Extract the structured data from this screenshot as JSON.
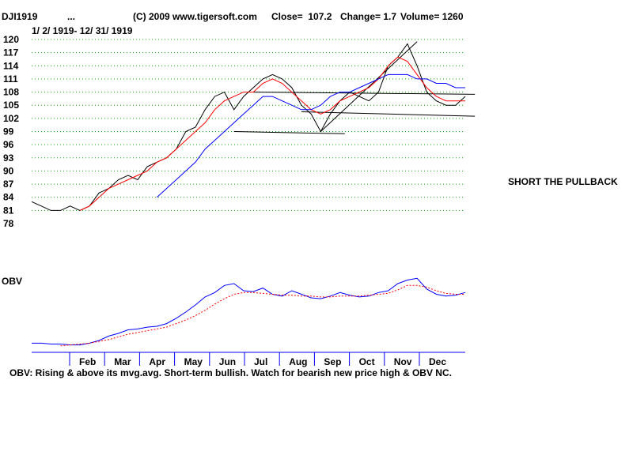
{
  "header": {
    "symbol": "DJI1919",
    "dots": "...",
    "copyright": "(C) 2009 www.tigersoft.com",
    "close": "Close=  107.2",
    "change": "Change= 1.7",
    "volume": "Volume= 1260"
  },
  "date_range": "1/ 2/ 1919- 12/ 31/ 1919",
  "annotation": "SHORT THE PULLBACK",
  "obv_label": "OBV",
  "obv_comment": "OBV: Rising & above its mvg.avg. Short-term bullish. Watch for bearish new price high & OBV NC.",
  "colors": {
    "price": "#000000",
    "ma_short": "#ff0000",
    "ma_long": "#0000ff",
    "obv": "#0000ff",
    "obv_ma": "#ff0000",
    "grid": "#00aa00"
  },
  "chart_data": [
    {
      "type": "line",
      "ylim": [
        78,
        121
      ],
      "y_ticks": [
        "120",
        "117",
        "114",
        "111",
        "108",
        "105",
        "102",
        "99",
        "96",
        "93",
        "90",
        "87",
        "84",
        "81",
        "78"
      ],
      "x": [
        0,
        8,
        16,
        24,
        32,
        40,
        48,
        56,
        64,
        72,
        80,
        88,
        96,
        104,
        112,
        120,
        128,
        136,
        144,
        152,
        160,
        168,
        176,
        184,
        192,
        200,
        208,
        216,
        224,
        232,
        240,
        248,
        256,
        264,
        272,
        280,
        288,
        296,
        304,
        312,
        320,
        328,
        336,
        344,
        352,
        360
      ],
      "series": [
        {
          "values": [
            83,
            82,
            81,
            81,
            82,
            81,
            82,
            85,
            86,
            88,
            89,
            88,
            91,
            92,
            93,
            95,
            99,
            100,
            104,
            107,
            108,
            104,
            107,
            109,
            111,
            112,
            111,
            109,
            105,
            103,
            99,
            103,
            106,
            108,
            107,
            106,
            108,
            114,
            116,
            119,
            114,
            108,
            106,
            105,
            105,
            107
          ]
        },
        {
          "values": [
            null,
            null,
            null,
            null,
            null,
            81,
            82,
            84,
            86,
            87,
            88,
            89,
            90,
            92,
            93,
            95,
            97,
            99,
            101,
            104,
            106,
            107,
            108,
            108,
            110,
            111,
            110,
            108,
            106,
            104,
            103,
            104,
            106,
            107,
            108,
            109,
            111,
            114,
            116,
            115,
            112,
            109,
            107,
            106,
            106,
            106
          ]
        },
        {
          "values": [
            null,
            null,
            null,
            null,
            null,
            null,
            null,
            null,
            null,
            null,
            null,
            null,
            null,
            84,
            86,
            88,
            90,
            92,
            95,
            97,
            99,
            101,
            103,
            105,
            107,
            107,
            106,
            105,
            104,
            104,
            105,
            107,
            108,
            108,
            109,
            110,
            111,
            112,
            112,
            112,
            111,
            111,
            110,
            110,
            109,
            109
          ]
        }
      ]
    },
    {
      "type": "line",
      "ylim": [
        0,
        100
      ],
      "x": [
        0,
        8,
        16,
        24,
        32,
        40,
        48,
        56,
        64,
        72,
        80,
        88,
        96,
        104,
        112,
        120,
        128,
        136,
        144,
        152,
        160,
        168,
        176,
        184,
        192,
        200,
        208,
        216,
        224,
        232,
        240,
        248,
        256,
        264,
        272,
        280,
        288,
        296,
        304,
        312,
        320,
        328,
        336,
        344,
        352,
        360
      ],
      "series": [
        {
          "values": [
            5,
            5,
            4,
            4,
            3,
            3,
            5,
            8,
            13,
            16,
            20,
            21,
            23,
            24,
            27,
            33,
            40,
            48,
            57,
            62,
            70,
            72,
            64,
            63,
            67,
            60,
            58,
            64,
            60,
            56,
            55,
            58,
            62,
            59,
            57,
            58,
            62,
            64,
            72,
            76,
            78,
            66,
            60,
            58,
            59,
            62
          ]
        },
        {
          "values": [
            null,
            null,
            null,
            2,
            3,
            4,
            5,
            7,
            9,
            12,
            15,
            17,
            19,
            21,
            23,
            27,
            31,
            36,
            42,
            49,
            55,
            60,
            62,
            62,
            61,
            60,
            59,
            59,
            58,
            58,
            57,
            57,
            58,
            58,
            58,
            59,
            60,
            61,
            65,
            70,
            70,
            68,
            64,
            61,
            60,
            60
          ]
        }
      ],
      "x_ticks": [
        "Feb",
        "Mar",
        "Apr",
        "May",
        "Jun",
        "Jul",
        "Aug",
        "Sep",
        "Oct",
        "Nov",
        "Dec"
      ]
    }
  ]
}
